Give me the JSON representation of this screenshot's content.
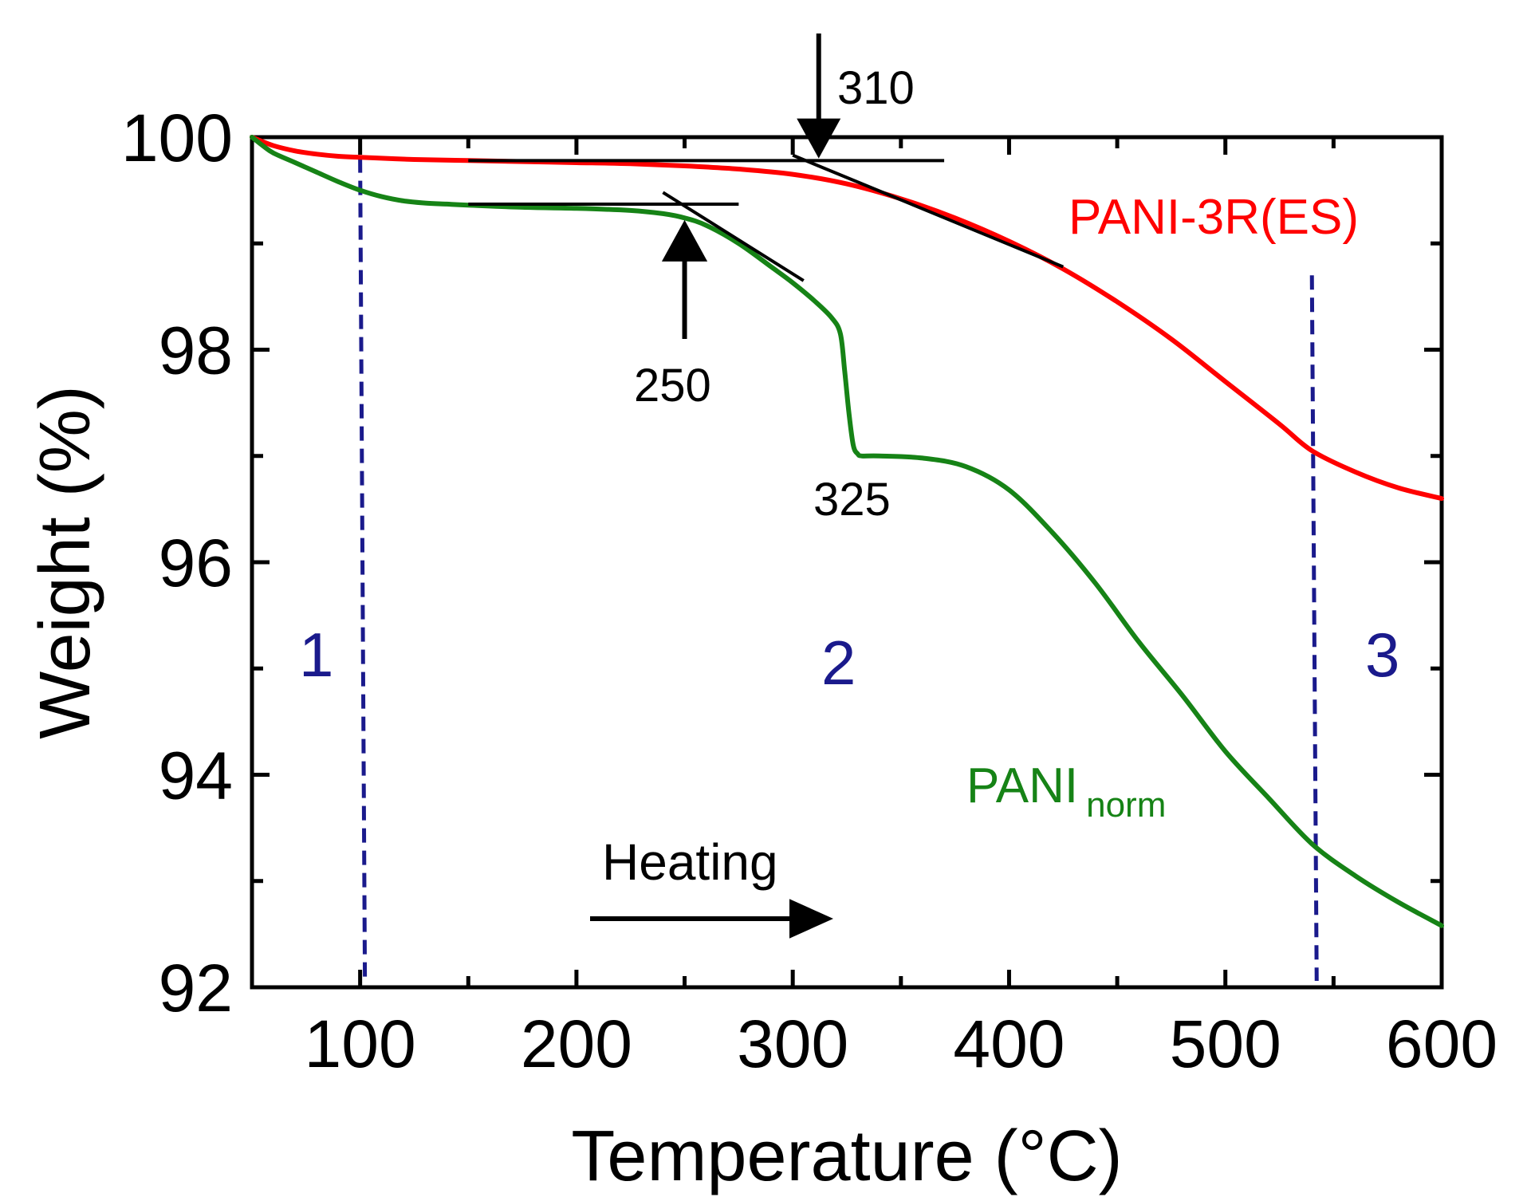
{
  "chart_data": {
    "type": "line",
    "title": "",
    "xlabel": "Temperature (°C)",
    "ylabel": "Weight (%)",
    "xlim": [
      50,
      600
    ],
    "ylim": [
      92,
      100
    ],
    "x_ticks": [
      100,
      200,
      300,
      400,
      500,
      600
    ],
    "y_ticks": [
      92,
      94,
      96,
      98,
      100
    ],
    "x_tick_labels": [
      "100",
      "200",
      "300",
      "400",
      "500",
      "600"
    ],
    "y_tick_labels": [
      "92",
      "94",
      "96",
      "98",
      "100"
    ],
    "grid": false,
    "series": [
      {
        "name": "PANI-3R(ES)",
        "label": "PANI-3R(ES)",
        "color": "#ff0000",
        "x": [
          50,
          60,
          70,
          80,
          90,
          100,
          125,
          150,
          175,
          200,
          225,
          250,
          275,
          300,
          325,
          350,
          375,
          400,
          425,
          450,
          475,
          500,
          525,
          540,
          560,
          580,
          600
        ],
        "y": [
          100,
          99.92,
          99.87,
          99.84,
          99.82,
          99.81,
          99.79,
          99.78,
          99.77,
          99.76,
          99.75,
          99.73,
          99.7,
          99.65,
          99.56,
          99.42,
          99.24,
          99.02,
          98.76,
          98.45,
          98.1,
          97.7,
          97.3,
          97.05,
          96.85,
          96.7,
          96.6
        ]
      },
      {
        "name": "PANI norm",
        "label_main": "PANI",
        "label_sub": "norm",
        "color": "#168316",
        "x": [
          50,
          55,
          60,
          70,
          80,
          90,
          100,
          110,
          120,
          130,
          140,
          150,
          175,
          200,
          225,
          240,
          250,
          260,
          275,
          290,
          300,
          310,
          318,
          322,
          324,
          326,
          328,
          330,
          332,
          340,
          360,
          380,
          400,
          420,
          440,
          460,
          480,
          500,
          520,
          540,
          560,
          580,
          600
        ],
        "y": [
          100,
          99.92,
          99.85,
          99.76,
          99.67,
          99.58,
          99.5,
          99.44,
          99.4,
          99.38,
          99.37,
          99.36,
          99.34,
          99.33,
          99.31,
          99.28,
          99.24,
          99.17,
          99.0,
          98.78,
          98.63,
          98.46,
          98.3,
          98.15,
          97.8,
          97.4,
          97.1,
          97.02,
          97.0,
          97.0,
          96.98,
          96.9,
          96.68,
          96.28,
          95.8,
          95.25,
          94.75,
          94.22,
          93.78,
          93.35,
          93.05,
          92.8,
          92.58
        ]
      }
    ],
    "region_boundaries": [
      100,
      540
    ],
    "region_labels": [
      "1",
      "2",
      "3"
    ],
    "annotations": {
      "onset_310": "310",
      "onset_250": "250",
      "step_325": "325",
      "heating": "Heating"
    }
  }
}
